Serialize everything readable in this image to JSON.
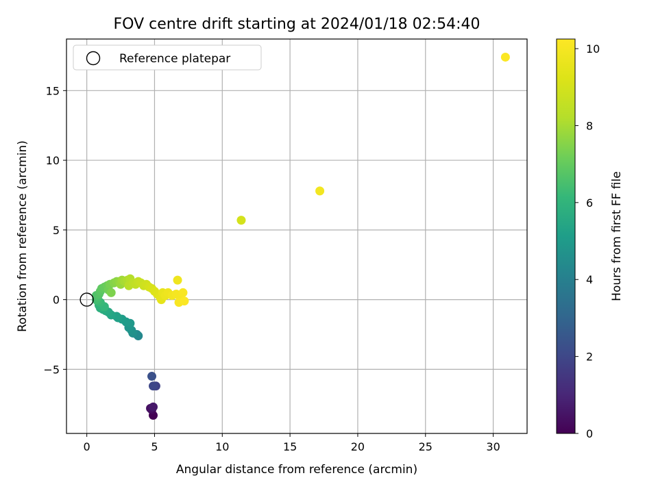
{
  "chart_data": {
    "type": "scatter",
    "title": "FOV centre drift starting at 2024/01/18 02:54:40",
    "xlabel": "Angular distance from reference (arcmin)",
    "ylabel": "Rotation from reference (arcmin)",
    "xlim": [
      -1.5,
      32.5
    ],
    "ylim": [
      -9.6,
      18.7
    ],
    "xticks": [
      0,
      5,
      10,
      15,
      20,
      25,
      30
    ],
    "xtick_labels": [
      "0",
      "5",
      "10",
      "15",
      "20",
      "25",
      "30"
    ],
    "yticks": [
      -5,
      0,
      5,
      10,
      15
    ],
    "ytick_labels": [
      "−5",
      "0",
      "5",
      "10",
      "15"
    ],
    "grid": true,
    "legend": {
      "placement": "top-left",
      "entries": [
        {
          "label": "Reference platepar",
          "marker": "hollow-circle"
        }
      ]
    },
    "reference_point": {
      "x": 0,
      "y": 0
    },
    "colorbar": {
      "label": "Hours from first FF file",
      "colormap": "viridis",
      "range": [
        0,
        10.25
      ],
      "ticks": [
        0,
        2,
        4,
        6,
        8,
        10
      ],
      "tick_labels": [
        "0",
        "2",
        "4",
        "6",
        "8",
        "10"
      ]
    },
    "points": [
      {
        "x": 4.9,
        "y": -8.3,
        "t": 0.0
      },
      {
        "x": 4.8,
        "y": -7.9,
        "t": 0.2
      },
      {
        "x": 4.7,
        "y": -7.8,
        "t": 0.4
      },
      {
        "x": 4.9,
        "y": -7.7,
        "t": 0.6
      },
      {
        "x": 5.1,
        "y": -6.2,
        "t": 1.8
      },
      {
        "x": 4.9,
        "y": -6.2,
        "t": 2.0
      },
      {
        "x": 4.8,
        "y": -5.5,
        "t": 2.3
      },
      {
        "x": 3.8,
        "y": -2.6,
        "t": 4.3
      },
      {
        "x": 3.7,
        "y": -2.5,
        "t": 4.4
      },
      {
        "x": 3.4,
        "y": -2.4,
        "t": 4.6
      },
      {
        "x": 3.3,
        "y": -2.2,
        "t": 4.7
      },
      {
        "x": 3.1,
        "y": -2.0,
        "t": 4.8
      },
      {
        "x": 3.2,
        "y": -1.7,
        "t": 4.9
      },
      {
        "x": 2.9,
        "y": -1.6,
        "t": 5.0
      },
      {
        "x": 2.6,
        "y": -1.4,
        "t": 5.1
      },
      {
        "x": 2.3,
        "y": -1.3,
        "t": 5.2
      },
      {
        "x": 2.2,
        "y": -1.2,
        "t": 5.3
      },
      {
        "x": 1.8,
        "y": -1.1,
        "t": 5.4
      },
      {
        "x": 1.6,
        "y": -0.9,
        "t": 5.5
      },
      {
        "x": 1.4,
        "y": -0.8,
        "t": 5.6
      },
      {
        "x": 1.2,
        "y": -0.7,
        "t": 5.7
      },
      {
        "x": 1.0,
        "y": -0.6,
        "t": 5.8
      },
      {
        "x": 1.1,
        "y": -0.5,
        "t": 5.9
      },
      {
        "x": 0.9,
        "y": -0.4,
        "t": 6.0
      },
      {
        "x": 1.3,
        "y": -0.5,
        "t": 6.1
      },
      {
        "x": 1.0,
        "y": -0.2,
        "t": 6.2
      },
      {
        "x": 0.8,
        "y": -0.1,
        "t": 6.3
      },
      {
        "x": 0.7,
        "y": 0.0,
        "t": 6.4
      },
      {
        "x": 0.8,
        "y": 0.2,
        "t": 6.5
      },
      {
        "x": 0.7,
        "y": 0.3,
        "t": 6.6
      },
      {
        "x": 0.9,
        "y": 0.4,
        "t": 6.7
      },
      {
        "x": 1.0,
        "y": 0.6,
        "t": 6.8
      },
      {
        "x": 1.1,
        "y": 0.8,
        "t": 6.9
      },
      {
        "x": 1.3,
        "y": 0.9,
        "t": 7.0
      },
      {
        "x": 1.5,
        "y": 1.0,
        "t": 7.1
      },
      {
        "x": 1.6,
        "y": 0.7,
        "t": 7.2
      },
      {
        "x": 1.7,
        "y": 1.1,
        "t": 7.3
      },
      {
        "x": 1.8,
        "y": 0.5,
        "t": 7.4
      },
      {
        "x": 2.0,
        "y": 1.2,
        "t": 7.5
      },
      {
        "x": 2.2,
        "y": 1.3,
        "t": 7.6
      },
      {
        "x": 2.4,
        "y": 1.3,
        "t": 7.7
      },
      {
        "x": 2.5,
        "y": 1.1,
        "t": 7.8
      },
      {
        "x": 2.6,
        "y": 1.4,
        "t": 7.9
      },
      {
        "x": 2.8,
        "y": 1.3,
        "t": 8.0
      },
      {
        "x": 3.0,
        "y": 1.4,
        "t": 8.1
      },
      {
        "x": 3.2,
        "y": 1.5,
        "t": 8.2
      },
      {
        "x": 3.1,
        "y": 1.0,
        "t": 8.3
      },
      {
        "x": 3.4,
        "y": 1.2,
        "t": 8.4
      },
      {
        "x": 3.6,
        "y": 1.1,
        "t": 8.5
      },
      {
        "x": 3.8,
        "y": 1.3,
        "t": 8.6
      },
      {
        "x": 4.0,
        "y": 1.2,
        "t": 8.7
      },
      {
        "x": 4.2,
        "y": 1.0,
        "t": 8.8
      },
      {
        "x": 4.4,
        "y": 1.1,
        "t": 8.9
      },
      {
        "x": 4.6,
        "y": 0.9,
        "t": 9.0
      },
      {
        "x": 4.8,
        "y": 0.8,
        "t": 9.1
      },
      {
        "x": 5.0,
        "y": 0.6,
        "t": 9.2
      },
      {
        "x": 5.2,
        "y": 0.4,
        "t": 9.3
      },
      {
        "x": 5.4,
        "y": 0.2,
        "t": 9.4
      },
      {
        "x": 5.5,
        "y": 0.0,
        "t": 9.5
      },
      {
        "x": 5.6,
        "y": 0.5,
        "t": 9.6
      },
      {
        "x": 5.8,
        "y": 0.3,
        "t": 9.7
      },
      {
        "x": 6.0,
        "y": 0.5,
        "t": 9.8
      },
      {
        "x": 6.3,
        "y": 0.3,
        "t": 9.9
      },
      {
        "x": 6.6,
        "y": 0.4,
        "t": 10.0
      },
      {
        "x": 6.7,
        "y": 1.4,
        "t": 9.8
      },
      {
        "x": 6.9,
        "y": 0.1,
        "t": 10.0
      },
      {
        "x": 6.8,
        "y": -0.2,
        "t": 10.1
      },
      {
        "x": 7.1,
        "y": 0.5,
        "t": 10.1
      },
      {
        "x": 7.2,
        "y": -0.1,
        "t": 10.2
      },
      {
        "x": 11.4,
        "y": 5.7,
        "t": 9.0
      },
      {
        "x": 17.2,
        "y": 7.8,
        "t": 9.9
      },
      {
        "x": 30.9,
        "y": 17.4,
        "t": 10.2
      }
    ]
  }
}
